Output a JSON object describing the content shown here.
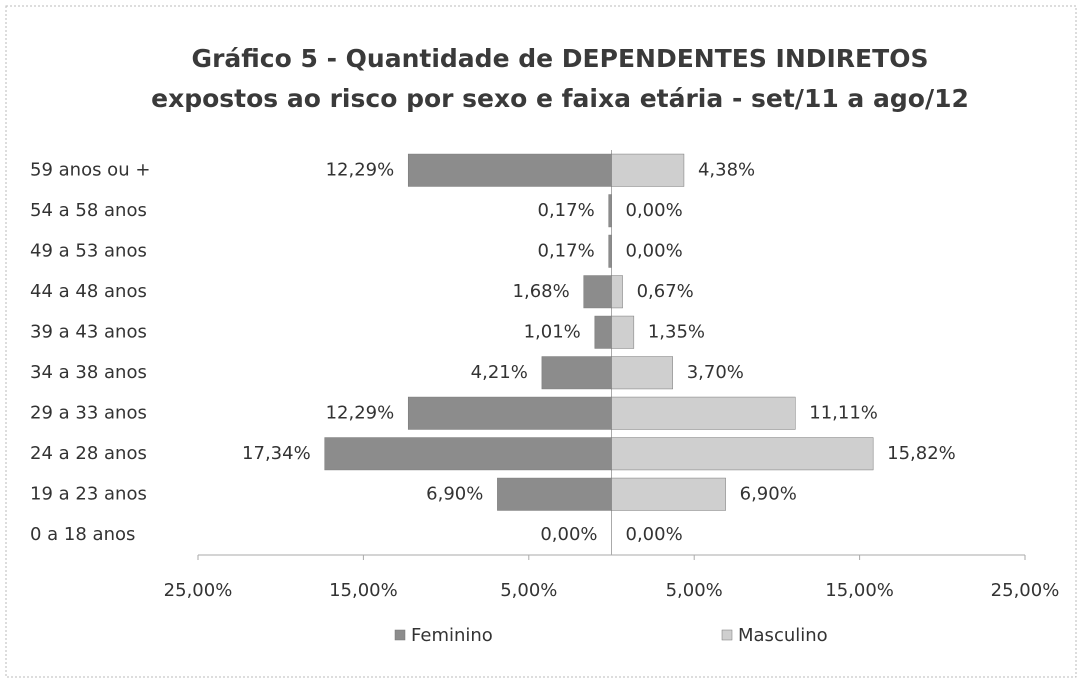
{
  "chart_data": {
    "type": "pyramid",
    "title": "Gráfico 5 - Quantidade de DEPENDENTES INDIRETOS",
    "subtitle": "expostos ao risco por sexo e faixa etária - set/11 a ago/12",
    "categories": [
      "59 anos ou +",
      "54 a  58 anos",
      "49 a  53 anos",
      "44 a  48 anos",
      "39 a  43 anos",
      "34 a  38 anos",
      "29 a  33 anos",
      "24 a  28 anos",
      "19 a  23 anos",
      "0 a  18 anos"
    ],
    "series": [
      {
        "name": "Feminino",
        "color": "#8c8c8c",
        "values": [
          12.29,
          0.17,
          0.17,
          1.68,
          1.01,
          4.21,
          12.29,
          17.34,
          6.9,
          0.0
        ],
        "value_labels": [
          "12,29%",
          "0,17%",
          "0,17%",
          "1,68%",
          "1,01%",
          "4,21%",
          "12,29%",
          "17,34%",
          "6,90%",
          "0,00%"
        ]
      },
      {
        "name": "Masculino",
        "color": "#cfcfcf",
        "values": [
          4.38,
          0.0,
          0.0,
          0.67,
          1.35,
          3.7,
          11.11,
          15.82,
          6.9,
          0.0
        ],
        "value_labels": [
          "4,38%",
          "0,00%",
          "0,00%",
          "0,67%",
          "1,35%",
          "3,70%",
          "11,11%",
          "15,82%",
          "6,90%",
          "0,00%"
        ]
      }
    ],
    "xlim": [
      -25,
      25
    ],
    "xticks": [
      {
        "value": -25,
        "label": "25,00%"
      },
      {
        "value": -15,
        "label": "15,00%"
      },
      {
        "value": -5,
        "label": "5,00%"
      },
      {
        "value": 5,
        "label": "5,00%"
      },
      {
        "value": 15,
        "label": "15,00%"
      },
      {
        "value": 25,
        "label": "25,00%"
      }
    ],
    "legend": "bottom"
  }
}
